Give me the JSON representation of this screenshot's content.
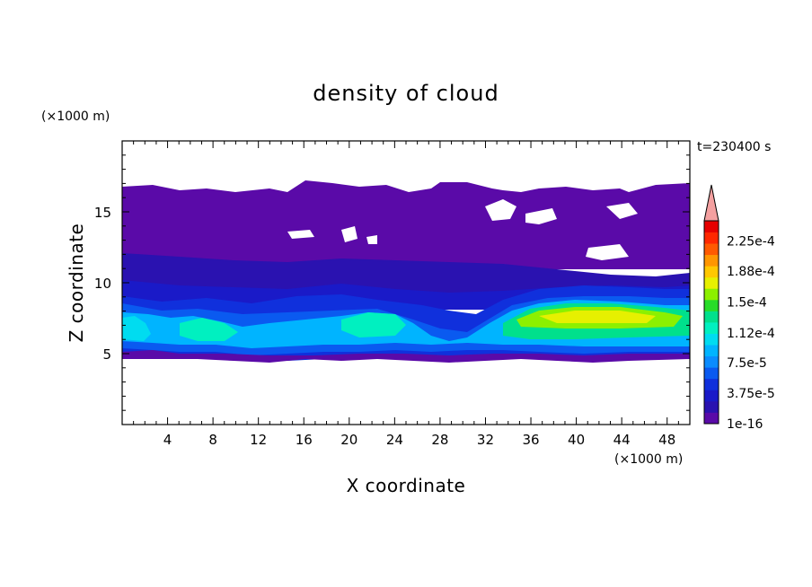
{
  "chart_data": {
    "type": "heatmap",
    "title": "density of cloud",
    "xlabel": "X coordinate",
    "ylabel": "Z coordinate",
    "x_unit": "(×1000 m)",
    "y_unit": "(×1000 m)",
    "time_label": "t=230400 s",
    "xlim": [
      0,
      50
    ],
    "ylim": [
      0,
      20
    ],
    "x_ticks": [
      4,
      8,
      12,
      16,
      20,
      24,
      28,
      32,
      36,
      40,
      44,
      48
    ],
    "y_ticks": [
      5,
      10,
      15
    ],
    "colorbar": {
      "min": 1e-16,
      "max": 0.00025,
      "tick_labels": [
        "1e-16",
        "3.75e-5",
        "7.5e-5",
        "1.12e-4",
        "1.5e-4",
        "1.88e-4",
        "2.25e-4"
      ],
      "tick_values": [
        0,
        3.75e-05,
        7.5e-05,
        0.000112,
        0.00015,
        0.000188,
        0.000225
      ],
      "colors": [
        "#5a0aa8",
        "#2a12b0",
        "#1a1ac8",
        "#1030dc",
        "#0a5af0",
        "#0a8cff",
        "#00b4ff",
        "#00dcf0",
        "#00f0c0",
        "#00e08c",
        "#28dc28",
        "#8cf000",
        "#e6f000",
        "#ffc800",
        "#ff9600",
        "#ff5a00",
        "#ff2800",
        "#e60000"
      ],
      "over_color": "#f4a0a0"
    },
    "regions": [
      {
        "name": "upper cloud layer",
        "x": [
          0,
          50
        ],
        "z": [
          10.5,
          17
        ],
        "value": 3e-06
      },
      {
        "name": "mid cloud layer",
        "x": [
          0,
          50
        ],
        "z": [
          8.5,
          10.5
        ],
        "value": 1.5e-05
      },
      {
        "name": "low cloud band west",
        "x": [
          0,
          32
        ],
        "z": [
          4.7,
          8.5
        ],
        "value": 6e-05
      },
      {
        "name": "core west",
        "x": [
          0,
          3
        ],
        "z": [
          6,
          7.8
        ],
        "value": 0.00011
      },
      {
        "name": "core mid-west",
        "x": [
          6,
          11
        ],
        "z": [
          6,
          7.5
        ],
        "value": 0.000105
      },
      {
        "name": "core mid",
        "x": [
          19,
          25
        ],
        "z": [
          6.4,
          7.8
        ],
        "value": 0.0001
      },
      {
        "name": "low cloud band east",
        "x": [
          32,
          50
        ],
        "z": [
          5,
          9.2
        ],
        "value": 0.00011
      },
      {
        "name": "core east",
        "x": [
          35,
          49
        ],
        "z": [
          7.2,
          8.6
        ],
        "value": 0.00016
      }
    ]
  }
}
